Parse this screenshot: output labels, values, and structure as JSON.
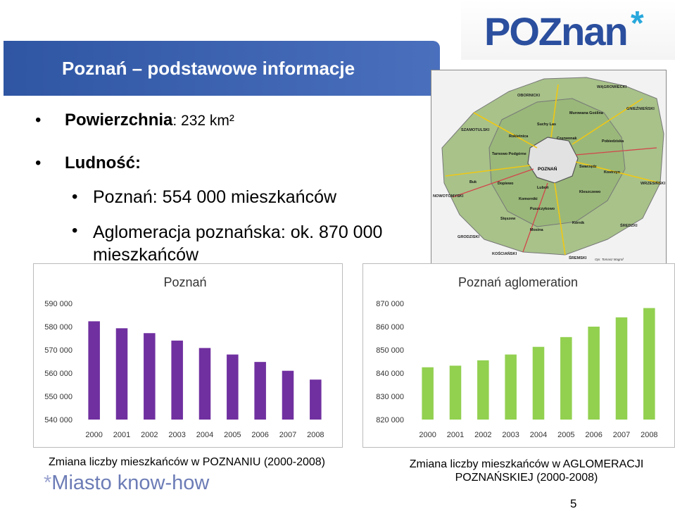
{
  "header": {
    "title": "Poznań – podstawowe informacje",
    "logo_text": "POZnan",
    "logo_star": "*"
  },
  "bullets": {
    "area_label": "Powierzchnia",
    "area_value": ": 232 km²",
    "population_label": "Ludność:",
    "city_population": "Poznań: 554 000 mieszkańców",
    "agglomeration_population": "Aglomeracja poznańska: ok. 870 000 mieszkańców"
  },
  "map": {
    "center_label": "POZNAŃ",
    "regions": [
      {
        "name": "OBORNICKI"
      },
      {
        "name": "WĄGROWIECKI"
      },
      {
        "name": "SZAMOTULSKI"
      },
      {
        "name": "GNIEŹNIEŃSKI"
      },
      {
        "name": "NOWOTOMYSKI"
      },
      {
        "name": "WRZESIŃSKI"
      },
      {
        "name": "GRODZISKI"
      },
      {
        "name": "ŚREDZKI"
      },
      {
        "name": "KOŚCIAŃSKI"
      },
      {
        "name": "ŚREMSKI"
      }
    ],
    "towns": [
      {
        "name": "Murowana Goślina"
      },
      {
        "name": "Suchy Las"
      },
      {
        "name": "Rokietnica"
      },
      {
        "name": "Czerwonak"
      },
      {
        "name": "Pobiedziska"
      },
      {
        "name": "Tarnowo Podgórne"
      },
      {
        "name": "Swarzędz"
      },
      {
        "name": "Kostrzyn"
      },
      {
        "name": "Buk"
      },
      {
        "name": "Dopiewo"
      },
      {
        "name": "Luboń"
      },
      {
        "name": "Kleszczewo"
      },
      {
        "name": "Komorniki"
      },
      {
        "name": "Puszczykowo"
      },
      {
        "name": "Stęszew"
      },
      {
        "name": "Kórnik"
      },
      {
        "name": "Mosina"
      }
    ],
    "credit": "Opr. Tomasz Magraf"
  },
  "chart_data": [
    {
      "type": "bar",
      "title": "Poznań",
      "categories": [
        "2000",
        "2001",
        "2002",
        "2003",
        "2004",
        "2005",
        "2006",
        "2007",
        "2008"
      ],
      "values": [
        582300,
        579300,
        577200,
        574000,
        570800,
        568000,
        564800,
        561000,
        557200
      ],
      "ylim": [
        540000,
        590000
      ],
      "yticks": [
        "590 000",
        "580 000",
        "570 000",
        "560 000",
        "550 000",
        "540 000"
      ],
      "color": "#7030a0",
      "grid": false
    },
    {
      "type": "bar",
      "title": "Poznań aglomeration",
      "categories": [
        "2000",
        "2001",
        "2002",
        "2003",
        "2004",
        "2005",
        "2006",
        "2007",
        "2008"
      ],
      "values": [
        842500,
        843200,
        845500,
        848000,
        851300,
        855500,
        860000,
        864000,
        868000
      ],
      "ylim": [
        820000,
        870000
      ],
      "yticks": [
        "870 000",
        "860 000",
        "850 000",
        "840 000",
        "830 000",
        "820 000"
      ],
      "color": "#92d050",
      "grid": false
    }
  ],
  "captions": {
    "city_chart": "Zmiana liczby mieszkańców w POZNANIU (2000-2008)",
    "agglomeration_chart": "Zmiana liczby mieszkańców w AGLOMERACJI POZNAŃSKIEJ (2000-2008)"
  },
  "footer": {
    "logo_star": "*",
    "logo_text": "Miasto know-how",
    "page_number": "5"
  }
}
